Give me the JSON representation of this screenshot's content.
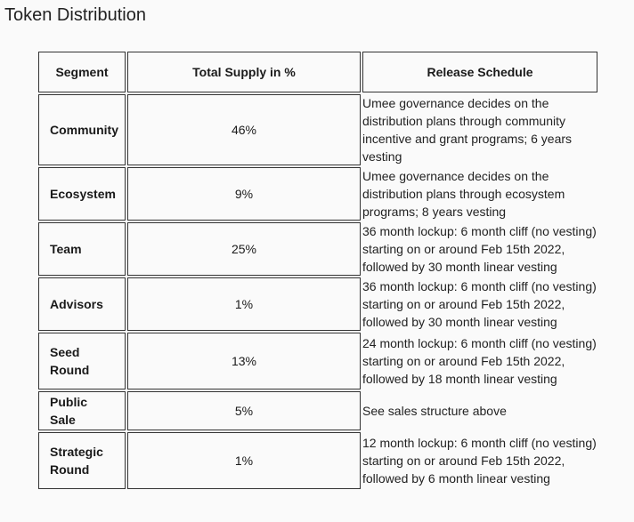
{
  "title": "Token Distribution",
  "table": {
    "headers": {
      "segment": "Segment",
      "supply": "Total Supply in %",
      "schedule": "Release Schedule"
    },
    "rows": [
      {
        "segment": "Community",
        "supply": "46%",
        "schedule": "Umee governance decides on the distribution plans through community incentive and grant programs; 6 years vesting"
      },
      {
        "segment": "Ecosystem",
        "supply": "9%",
        "schedule": "Umee governance decides on the distribution plans through ecosystem programs; 8 years vesting"
      },
      {
        "segment": "Team",
        "supply": "25%",
        "schedule": "36 month lockup: 6 month cliff (no vesting) starting on or around Feb 15th 2022, followed by 30 month linear vesting"
      },
      {
        "segment": "Advisors",
        "supply": "1%",
        "schedule": "36 month lockup: 6 month cliff (no vesting) starting on or around Feb 15th 2022, followed by 30 month linear vesting"
      },
      {
        "segment": "Seed Round",
        "supply": "13%",
        "schedule": "24 month lockup: 6 month cliff (no vesting) starting on or around Feb 15th 2022, followed by 18 month linear vesting"
      },
      {
        "segment": "Public Sale",
        "supply": "5%",
        "schedule": "See sales structure above"
      },
      {
        "segment": "Strategic Round",
        "supply": "1%",
        "schedule": "12 month lockup: 6 month cliff (no vesting) starting on or around Feb 15th 2022, followed by 6 month linear vesting"
      }
    ]
  }
}
